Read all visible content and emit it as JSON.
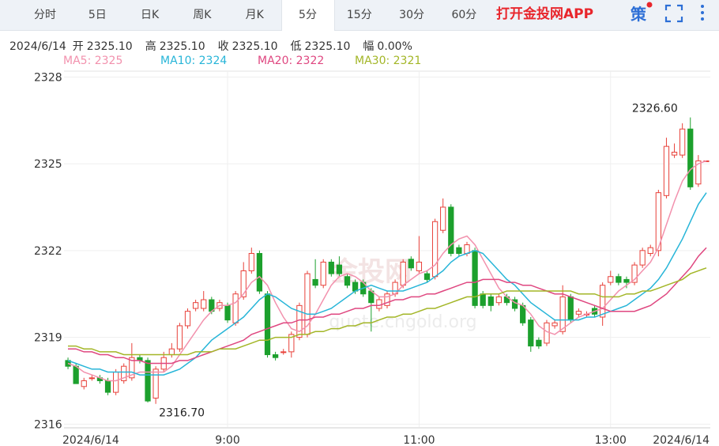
{
  "tabs": [
    "分时",
    "5日",
    "日K",
    "周K",
    "月K",
    "5分",
    "15分",
    "30分",
    "60分"
  ],
  "active_tab": 5,
  "app_link": "打开金投网APP",
  "strategy": "策",
  "quote": {
    "date": "2024/6/14",
    "items": [
      {
        "label": "开",
        "value": "2325.10"
      },
      {
        "label": "高",
        "value": "2325.10"
      },
      {
        "label": "收",
        "value": "2325.10"
      },
      {
        "label": "低",
        "value": "2325.10"
      },
      {
        "label": "幅",
        "value": "0.00%"
      }
    ]
  },
  "watermark": {
    "brand": "金投网",
    "url": "quote.cngold.org"
  },
  "chart_data": {
    "type": "candlestick",
    "up_color": "#e8413a",
    "down_color": "#1ca02d",
    "grid": true,
    "ylim": [
      2315.9,
      2328.2
    ],
    "yticks": [
      2316,
      2319,
      2322,
      2325,
      2328
    ],
    "categories": [
      "2024/6/14",
      null,
      null,
      null,
      null,
      null,
      null,
      null,
      null,
      null,
      null,
      null,
      null,
      null,
      null,
      null,
      null,
      null,
      null,
      null,
      "9:00",
      null,
      null,
      null,
      null,
      null,
      null,
      null,
      null,
      null,
      null,
      null,
      null,
      null,
      null,
      null,
      null,
      null,
      null,
      null,
      null,
      null,
      null,
      null,
      "11:00",
      null,
      null,
      null,
      null,
      null,
      null,
      null,
      null,
      null,
      null,
      null,
      null,
      null,
      null,
      null,
      null,
      null,
      null,
      null,
      null,
      null,
      null,
      null,
      "13:00",
      null,
      null,
      null,
      null,
      null,
      null,
      null,
      null,
      null,
      null,
      null,
      "2024/6/14"
    ],
    "open": [
      2318.2,
      2318.0,
      2317.3,
      2317.6,
      2317.6,
      2317.5,
      2317.1,
      2317.5,
      2317.6,
      2318.3,
      2318.2,
      2316.9,
      2317.9,
      2318.4,
      2318.6,
      2319.4,
      2320.0,
      2320.0,
      2320.3,
      2320.0,
      2320.1,
      2319.5,
      2320.4,
      2321.3,
      2321.9,
      2320.5,
      2318.4,
      2318.5,
      2318.5,
      2319.0,
      2319.1,
      2321.0,
      2320.8,
      2321.6,
      2321.5,
      2321.1,
      2320.9,
      2320.9,
      2320.6,
      2320.0,
      2320.1,
      2320.5,
      2320.8,
      2321.7,
      2321.3,
      2321.2,
      2321.1,
      2322.7,
      2323.5,
      2322.1,
      2321.9,
      2322.0,
      2320.5,
      2320.4,
      2320.2,
      2320.4,
      2320.3,
      2320.1,
      2319.6,
      2318.9,
      2318.8,
      2319.4,
      2319.2,
      2320.4,
      2319.8,
      2319.8,
      2320.0,
      2319.7,
      2320.9,
      2321.1,
      2321.0,
      2320.9,
      2321.5,
      2321.9,
      2322.0,
      2323.9,
      2325.3,
      2325.3,
      2326.2,
      2324.3,
      2325.1
    ],
    "high": [
      2318.3,
      2318.1,
      2317.6,
      2317.7,
      2317.7,
      2317.6,
      2317.9,
      2318.1,
      2318.8,
      2318.4,
      2318.3,
      2318.0,
      2318.5,
      2318.8,
      2319.5,
      2320.0,
      2320.3,
      2320.6,
      2320.4,
      2320.3,
      2320.2,
      2320.6,
      2321.6,
      2322.1,
      2322.0,
      2320.6,
      2318.5,
      2318.6,
      2319.2,
      2320.2,
      2321.3,
      2321.7,
      2321.7,
      2321.7,
      2321.8,
      2321.2,
      2321.0,
      2321.0,
      2320.7,
      2320.4,
      2320.6,
      2321.0,
      2321.7,
      2321.8,
      2322.5,
      2321.3,
      2323.1,
      2323.8,
      2323.6,
      2322.2,
      2322.3,
      2322.1,
      2320.6,
      2320.5,
      2320.5,
      2320.5,
      2320.4,
      2320.2,
      2319.7,
      2319.0,
      2319.6,
      2319.6,
      2320.8,
      2320.5,
      2320.0,
      2319.9,
      2320.1,
      2320.9,
      2321.3,
      2321.2,
      2321.1,
      2321.6,
      2322.1,
      2322.2,
      2324.1,
      2325.9,
      2325.7,
      2326.4,
      2326.6,
      2325.3,
      2325.1
    ],
    "low": [
      2317.9,
      2317.4,
      2317.2,
      2317.5,
      2317.4,
      2317.0,
      2317.0,
      2317.4,
      2317.5,
      2318.1,
      2316.75,
      2316.7,
      2317.8,
      2318.3,
      2318.5,
      2319.3,
      2319.9,
      2319.9,
      2319.8,
      2319.9,
      2319.5,
      2319.4,
      2320.3,
      2321.2,
      2320.5,
      2318.3,
      2318.2,
      2318.4,
      2318.3,
      2318.9,
      2319.0,
      2320.7,
      2320.7,
      2321.1,
      2321.1,
      2320.7,
      2320.5,
      2320.4,
      2319.2,
      2319.9,
      2320.0,
      2320.4,
      2320.7,
      2321.3,
      2321.2,
      2320.9,
      2321.0,
      2322.6,
      2321.8,
      2321.8,
      2321.8,
      2320.0,
      2320.0,
      2319.9,
      2320.1,
      2320.1,
      2319.9,
      2319.4,
      2318.5,
      2318.6,
      2318.7,
      2319.3,
      2319.1,
      2319.5,
      2319.7,
      2319.7,
      2319.7,
      2319.4,
      2320.8,
      2320.8,
      2320.7,
      2320.8,
      2321.4,
      2321.8,
      2321.8,
      2323.8,
      2325.2,
      2325.2,
      2324.1,
      2324.2,
      2325.1
    ],
    "close": [
      2318.0,
      2317.4,
      2317.5,
      2317.6,
      2317.5,
      2317.1,
      2317.8,
      2318.0,
      2318.3,
      2318.2,
      2316.8,
      2317.9,
      2318.3,
      2318.6,
      2319.4,
      2319.9,
      2320.2,
      2320.3,
      2319.9,
      2320.2,
      2319.6,
      2320.5,
      2321.3,
      2321.9,
      2320.6,
      2318.4,
      2318.3,
      2318.5,
      2319.1,
      2320.1,
      2321.2,
      2320.8,
      2321.6,
      2321.2,
      2321.2,
      2320.8,
      2320.6,
      2320.5,
      2320.2,
      2320.3,
      2320.5,
      2320.9,
      2321.6,
      2321.4,
      2321.6,
      2321.0,
      2323.0,
      2323.5,
      2321.9,
      2321.9,
      2322.2,
      2320.1,
      2320.1,
      2320.1,
      2320.4,
      2320.2,
      2320.0,
      2319.5,
      2318.7,
      2318.7,
      2319.5,
      2319.5,
      2320.4,
      2319.6,
      2319.9,
      2319.8,
      2319.8,
      2320.8,
      2321.1,
      2320.9,
      2320.9,
      2321.5,
      2322.0,
      2322.1,
      2324.0,
      2325.6,
      2325.4,
      2326.2,
      2324.2,
      2325.1,
      2325.1
    ],
    "annotations": [
      {
        "label": "2326.60",
        "value": 2326.6,
        "field": "high"
      },
      {
        "label": "2316.70",
        "value": 2316.7,
        "field": "low"
      }
    ],
    "series": [
      {
        "name": "MA5: 2325",
        "color": "#f291ad",
        "type": "line",
        "values": [
          2318.1,
          2318.0,
          2317.8,
          2317.7,
          2317.6,
          2317.5,
          2317.5,
          2317.6,
          2317.7,
          2317.8,
          2317.8,
          2317.8,
          2317.8,
          2318.0,
          2318.4,
          2318.8,
          2319.2,
          2319.6,
          2319.9,
          2320.1,
          2320.1,
          2320.2,
          2320.5,
          2320.9,
          2321.1,
          2320.8,
          2320.2,
          2319.7,
          2319.3,
          2319.2,
          2319.4,
          2319.8,
          2320.3,
          2320.8,
          2321.1,
          2321.2,
          2321.1,
          2320.9,
          2320.6,
          2320.4,
          2320.4,
          2320.5,
          2320.8,
          2321.0,
          2321.2,
          2321.3,
          2321.5,
          2321.9,
          2322.2,
          2322.4,
          2322.5,
          2322.2,
          2321.7,
          2321.2,
          2320.7,
          2320.4,
          2320.2,
          2320.1,
          2319.8,
          2319.4,
          2319.2,
          2319.1,
          2319.3,
          2319.5,
          2319.7,
          2319.8,
          2319.9,
          2320.0,
          2320.3,
          2320.6,
          2320.8,
          2321.0,
          2321.3,
          2321.6,
          2322.1,
          2322.9,
          2323.7,
          2324.4,
          2324.8,
          2325.0,
          2325.1
        ]
      },
      {
        "name": "MA10: 2324",
        "color": "#27b5d8",
        "type": "line",
        "values": [
          2318.2,
          2318.1,
          2318.0,
          2317.9,
          2317.9,
          2317.8,
          2317.8,
          2317.8,
          2317.8,
          2317.7,
          2317.7,
          2317.7,
          2317.7,
          2317.8,
          2317.9,
          2318.1,
          2318.3,
          2318.6,
          2318.9,
          2319.1,
          2319.3,
          2319.5,
          2319.7,
          2320.0,
          2320.3,
          2320.5,
          2320.4,
          2320.2,
          2320.0,
          2319.9,
          2319.8,
          2319.8,
          2319.9,
          2320.0,
          2320.2,
          2320.4,
          2320.6,
          2320.7,
          2320.8,
          2320.7,
          2320.6,
          2320.6,
          2320.6,
          2320.7,
          2320.8,
          2320.9,
          2321.1,
          2321.3,
          2321.6,
          2321.8,
          2321.9,
          2322.0,
          2321.9,
          2321.6,
          2321.3,
          2321.0,
          2320.8,
          2320.5,
          2320.2,
          2320.0,
          2319.8,
          2319.6,
          2319.6,
          2319.6,
          2319.6,
          2319.7,
          2319.7,
          2319.8,
          2319.9,
          2320.0,
          2320.1,
          2320.3,
          2320.5,
          2320.7,
          2321.0,
          2321.4,
          2321.9,
          2322.4,
          2323.0,
          2323.6,
          2324.0
        ]
      },
      {
        "name": "MA20: 2322",
        "color": "#df4780",
        "type": "line",
        "values": [
          2318.6,
          2318.6,
          2318.5,
          2318.5,
          2318.4,
          2318.4,
          2318.3,
          2318.3,
          2318.2,
          2318.2,
          2318.1,
          2318.1,
          2318.1,
          2318.1,
          2318.2,
          2318.2,
          2318.3,
          2318.4,
          2318.5,
          2318.6,
          2318.7,
          2318.8,
          2318.9,
          2319.1,
          2319.2,
          2319.3,
          2319.4,
          2319.5,
          2319.5,
          2319.6,
          2319.6,
          2319.7,
          2319.7,
          2319.8,
          2319.8,
          2319.9,
          2320.0,
          2320.0,
          2320.1,
          2320.1,
          2320.2,
          2320.3,
          2320.3,
          2320.4,
          2320.4,
          2320.5,
          2320.5,
          2320.6,
          2320.7,
          2320.8,
          2320.9,
          2320.9,
          2321.0,
          2321.0,
          2321.0,
          2320.9,
          2320.9,
          2320.8,
          2320.8,
          2320.7,
          2320.6,
          2320.5,
          2320.5,
          2320.4,
          2320.3,
          2320.2,
          2320.1,
          2320.0,
          2319.9,
          2319.9,
          2319.9,
          2319.9,
          2320.0,
          2320.1,
          2320.3,
          2320.5,
          2320.8,
          2321.1,
          2321.4,
          2321.8,
          2322.1
        ]
      },
      {
        "name": "MA30: 2321",
        "color": "#a3b627",
        "type": "line",
        "values": [
          2318.7,
          2318.7,
          2318.6,
          2318.6,
          2318.5,
          2318.5,
          2318.5,
          2318.4,
          2318.4,
          2318.4,
          2318.4,
          2318.4,
          2318.4,
          2318.4,
          2318.4,
          2318.4,
          2318.5,
          2318.5,
          2318.5,
          2318.6,
          2318.6,
          2318.6,
          2318.7,
          2318.8,
          2318.9,
          2318.9,
          2319.0,
          2319.0,
          2319.0,
          2319.1,
          2319.1,
          2319.2,
          2319.2,
          2319.3,
          2319.3,
          2319.4,
          2319.4,
          2319.5,
          2319.5,
          2319.6,
          2319.7,
          2319.7,
          2319.8,
          2319.8,
          2319.9,
          2320.0,
          2320.0,
          2320.1,
          2320.2,
          2320.3,
          2320.4,
          2320.4,
          2320.5,
          2320.5,
          2320.5,
          2320.6,
          2320.6,
          2320.6,
          2320.6,
          2320.6,
          2320.6,
          2320.6,
          2320.6,
          2320.6,
          2320.5,
          2320.5,
          2320.5,
          2320.4,
          2320.4,
          2320.4,
          2320.5,
          2320.5,
          2320.6,
          2320.6,
          2320.7,
          2320.8,
          2320.9,
          2321.0,
          2321.2,
          2321.3,
          2321.4
        ]
      }
    ]
  }
}
